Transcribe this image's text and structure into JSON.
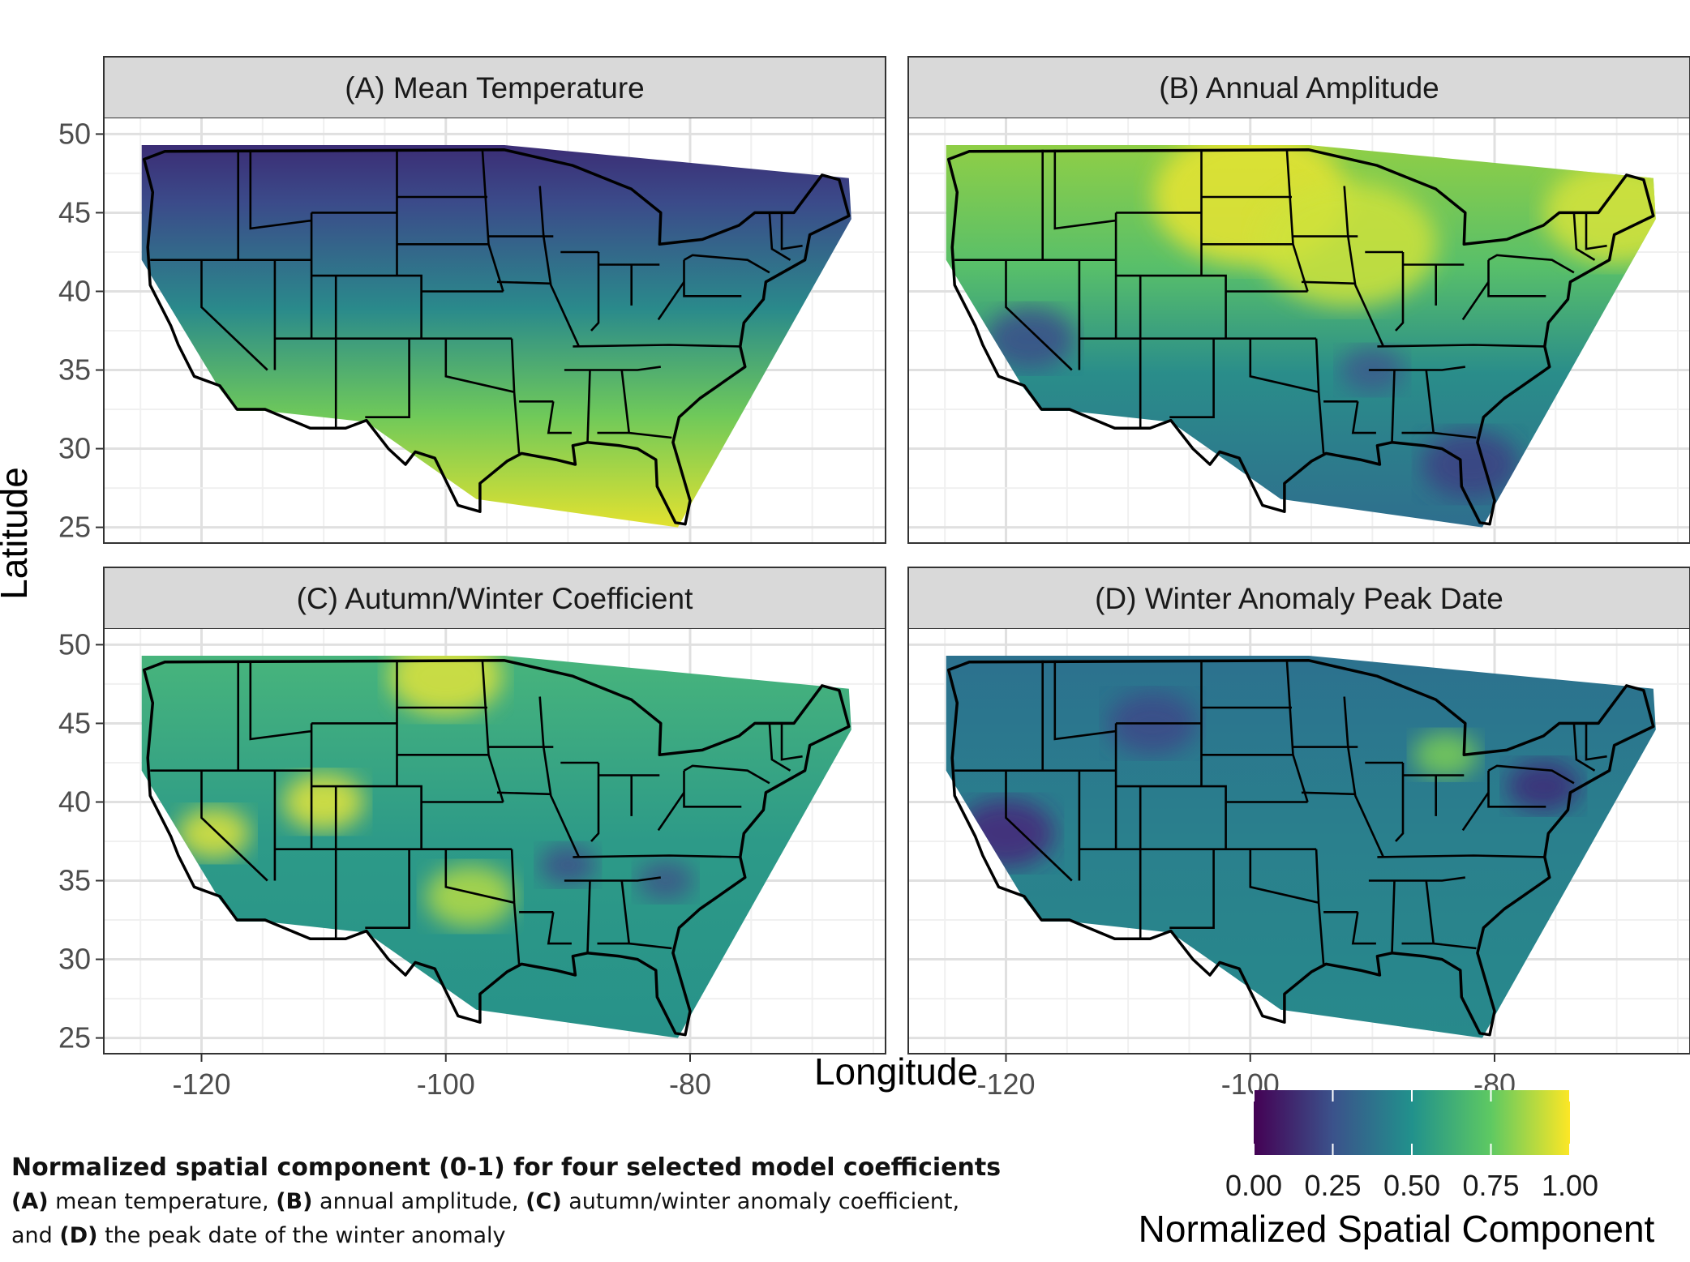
{
  "chart_data": {
    "type": "heatmap",
    "xlabel": "Longitude",
    "ylabel": "Latitude",
    "xlim": [
      -128,
      -64
    ],
    "ylim": [
      24,
      51
    ],
    "x_ticks": [
      -120,
      -100,
      -80
    ],
    "x_tick_labels": [
      "-120",
      "-100",
      "-80"
    ],
    "y_ticks": [
      25,
      30,
      35,
      40,
      45,
      50
    ],
    "y_tick_labels": [
      "25",
      "30",
      "35",
      "40",
      "45",
      "50"
    ],
    "grid": true,
    "panels": [
      {
        "title": "(A) Mean Temperature",
        "pattern": "south-north gradient, low in north, high in south"
      },
      {
        "title": "(B) Annual Amplitude",
        "pattern": "high in north-central plains and northeast, low on coasts and southeast"
      },
      {
        "title": "(C) Autumn/Winter Coefficient",
        "pattern": "mostly mid values with scattered high spots in west and plains"
      },
      {
        "title": "(D) Winter Anomaly Peak Date",
        "pattern": "mostly low-mid values, lowest in California"
      }
    ],
    "legend": {
      "title": "Normalized Spatial Component",
      "position": "bottom-right",
      "ticks": [
        "0.00",
        "0.25",
        "0.50",
        "0.75",
        "1.00"
      ],
      "colormap": "viridis",
      "colors": [
        "#440154",
        "#3b528b",
        "#21918c",
        "#5ec962",
        "#fde725"
      ]
    }
  },
  "caption": {
    "title": "Normalized spatial component (0-1) for four selected model coefficients",
    "a_label": "(A)",
    "a_text": " mean temperature, ",
    "b_label": "(B)",
    "b_text": " annual amplitude, ",
    "c_label": "(C)",
    "c_text": " autumn/winter anomaly coefficient,",
    "and_text": "and ",
    "d_label": "(D)",
    "d_text": " the peak date of the winter anomaly"
  }
}
